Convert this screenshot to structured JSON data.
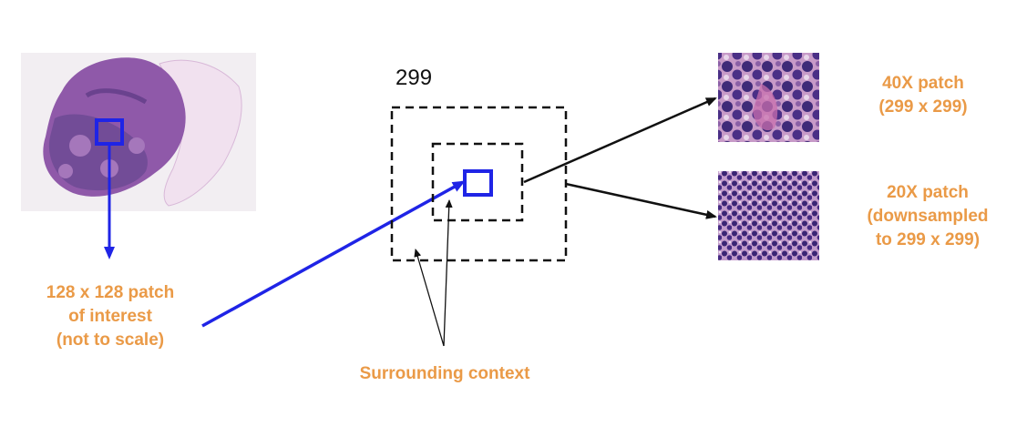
{
  "colors": {
    "label": "#ea9a47",
    "highlight": "#1f24e6",
    "outline": "#111111"
  },
  "context_size_label": "299",
  "labels": {
    "patch_of_interest": [
      "128 x 128 patch",
      "of interest",
      "(not to scale)"
    ],
    "surrounding_context": "Surrounding context",
    "patch_40x": [
      "40X patch",
      "(299 x 299)"
    ],
    "patch_20x": [
      "20X patch",
      "(downsampled",
      "to 299 x 299)"
    ]
  }
}
